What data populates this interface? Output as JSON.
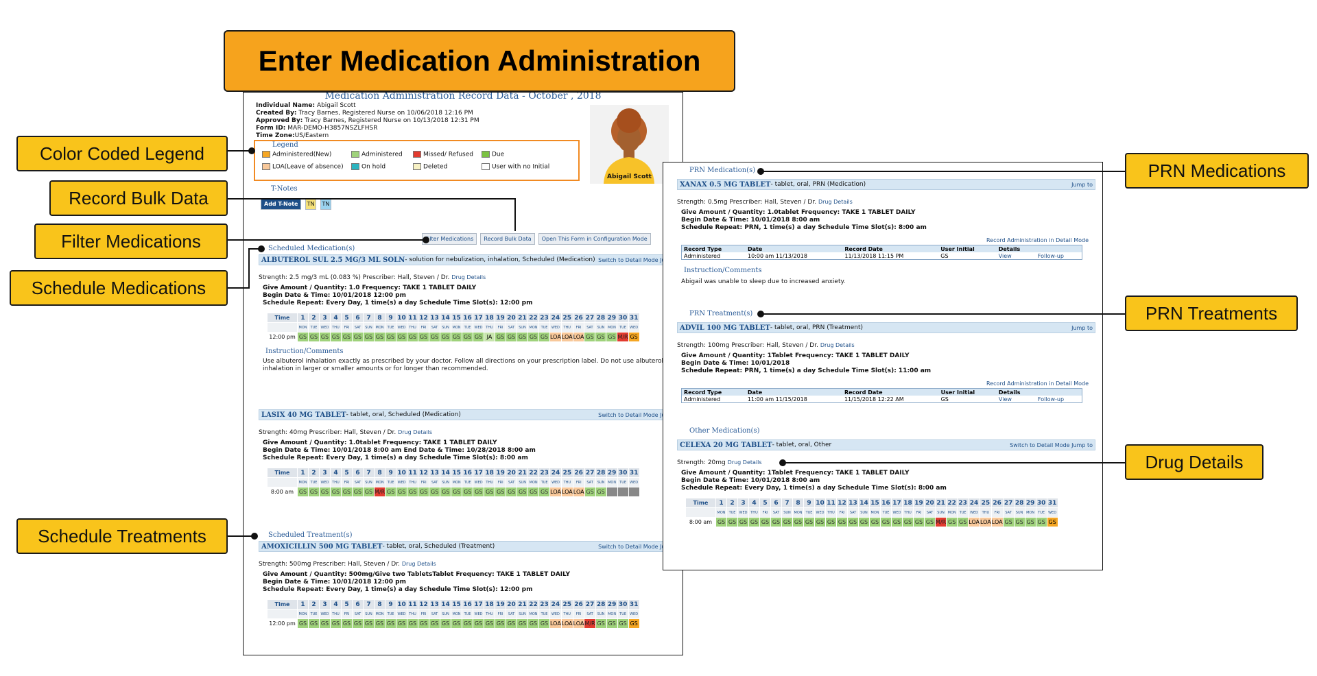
{
  "title": "Enter Medication Administration",
  "callouts": {
    "legend": "Color Coded Legend",
    "bulk": "Record Bulk Data",
    "filter": "Filter Medications",
    "schedule_meds": "Schedule Medications",
    "schedule_treat": "Schedule Treatments",
    "prn_meds": "PRN Medications",
    "prn_treat": "PRN Treatments",
    "drug_details": "Drug Details"
  },
  "record": {
    "header": "Medication Administration Record Data - October , 2018",
    "individual_label": "Individual Name:",
    "individual": "Abigail Scott",
    "created_label": "Created By:",
    "created": "Tracy Barnes, Registered Nurse on 10/06/2018 12:16 PM",
    "approved_label": "Approved By:",
    "approved": "Tracy Barnes, Registered Nurse on 10/13/2018 12:31 PM",
    "form_label": "Form ID:",
    "form_id": "MAR-DEMO-H3857NSZLFHSR",
    "tz_label": "Time Zone:",
    "tz": "US/Eastern",
    "avatar_name": "Abigail Scott"
  },
  "legend": {
    "title": "Legend",
    "items": [
      {
        "label": "Administered(New)",
        "color": "#f5a623"
      },
      {
        "label": "Administered",
        "color": "#9fd27b"
      },
      {
        "label": "Missed/ Refused",
        "color": "#e23b2f"
      },
      {
        "label": "Due",
        "color": "#7cc243"
      },
      {
        "label": "LOA(Leave of absence)",
        "color": "#f8c89a"
      },
      {
        "label": "On hold",
        "color": "#2bb4c0"
      },
      {
        "label": "Deleted",
        "color": "#f7f1c4"
      },
      {
        "label": "User with no Initial",
        "color": "#ffffff"
      }
    ]
  },
  "tnotes": {
    "title": "T-Notes",
    "add": "Add T-Note",
    "tn1": "TN",
    "tn2": "TN"
  },
  "toolbar": {
    "filter": "Filter Medications",
    "bulk": "Record Bulk Data",
    "config": "Open This Form in Configuration Mode"
  },
  "scheduled_meds_title": "Scheduled Medication(s)",
  "scheduled_treat_title": "Scheduled Treatment(s)",
  "days": [
    "1",
    "2",
    "3",
    "4",
    "5",
    "6",
    "7",
    "8",
    "9",
    "10",
    "11",
    "12",
    "13",
    "14",
    "15",
    "16",
    "17",
    "18",
    "19",
    "20",
    "21",
    "22",
    "23",
    "24",
    "25",
    "26",
    "27",
    "28",
    "29",
    "30",
    "31"
  ],
  "weekdays": [
    "MON",
    "TUE",
    "WED",
    "THU",
    "FRI",
    "SAT",
    "SUN",
    "MON",
    "TUE",
    "WED",
    "THU",
    "FRI",
    "SAT",
    "SUN",
    "MON",
    "TUE",
    "WED",
    "THU",
    "FRI",
    "SAT",
    "SUN",
    "MON",
    "TUE",
    "WED",
    "THU",
    "FRI",
    "SAT",
    "SUN",
    "MON",
    "TUE",
    "WED"
  ],
  "time_label": "Time",
  "meds": [
    {
      "name": "ALBUTEROL SUL 2.5 MG/3 ML SOLN",
      "desc": " - solution for nebulization, inhalation, Scheduled (Medication)",
      "links": "Switch to Detail Mode   Jump to",
      "strength": "Strength: 2.5 mg/3 mL (0.083 %)  Prescriber: Hall, Steven / Dr.",
      "drug_details": "Drug Details",
      "l1": "Give Amount / Quantity: 1.0 Frequency: TAKE 1 TABLET DAILY",
      "l2": "Begin Date & Time: 10/01/2018 12:00 pm",
      "l3": "Schedule Repeat: Every Day, 1 time(s) a day Schedule Time Slot(s): 12:00 pm",
      "time": "12:00 pm",
      "cells": [
        "GS",
        "GS",
        "GS",
        "GS",
        "GS",
        "GS",
        "GS",
        "GS",
        "GS",
        "GS",
        "GS",
        "GS",
        "GS",
        "GS",
        "GS",
        "GS",
        "GS",
        "JA",
        "GS",
        "GS",
        "GS",
        "GS",
        "GS",
        "LOA",
        "LOA",
        "LOA",
        "GS",
        "GS",
        "GS",
        "M/R",
        "GS"
      ],
      "instr_title": "Instruction/Comments",
      "instr": "Use albuterol inhalation exactly as prescribed by your doctor. Follow all directions on your prescription label. Do not use albuterol inhalation in larger or smaller amounts or for longer than recommended."
    },
    {
      "name": "LASIX 40 MG TABLET",
      "desc": " - tablet, oral, Scheduled (Medication)",
      "links": "Switch to Detail Mode   Jump to",
      "strength": "Strength: 40mg  Prescriber: Hall, Steven / Dr.",
      "drug_details": "Drug Details",
      "l1": "Give Amount / Quantity: 1.0tablet Frequency: TAKE 1 TABLET DAILY",
      "l2": "Begin Date & Time: 10/01/2018 8:00 am End Date & Time: 10/28/2018 8:00 am",
      "l3": "Schedule Repeat: Every Day, 1 time(s) a day Schedule Time Slot(s): 8:00 am",
      "time": "8:00 am",
      "cells": [
        "GS",
        "GS",
        "GS",
        "GS",
        "GS",
        "GS",
        "GS",
        "M/R",
        "GS",
        "GS",
        "GS",
        "GS",
        "GS",
        "GS",
        "GS",
        "GS",
        "GS",
        "GS",
        "GS",
        "GS",
        "GS",
        "GS",
        "GS",
        "LOA",
        "LOA",
        "LOA",
        "GS",
        "GS",
        "",
        "",
        ""
      ]
    }
  ],
  "treatments": [
    {
      "name": "AMOXICILLIN 500 MG TABLET",
      "desc": " - tablet, oral, Scheduled (Treatment)",
      "links": "Switch to Detail Mode   Jump to",
      "strength": "Strength: 500mg  Prescriber: Hall, Steven / Dr.",
      "drug_details": "Drug Details",
      "l1": "Give Amount / Quantity: 500mg/Give two TabletsTablet Frequency: TAKE 1 TABLET DAILY",
      "l2": "Begin Date & Time: 10/01/2018 12:00 pm",
      "l3": "Schedule Repeat: Every Day, 1 time(s) a day Schedule Time Slot(s): 12:00 pm",
      "time": "12:00 pm",
      "cells": [
        "GS",
        "GS",
        "GS",
        "GS",
        "GS",
        "GS",
        "GS",
        "GS",
        "GS",
        "GS",
        "GS",
        "GS",
        "GS",
        "GS",
        "GS",
        "GS",
        "GS",
        "GS",
        "GS",
        "GS",
        "GS",
        "GS",
        "GS",
        "LOA",
        "LOA",
        "LOA",
        "M/R",
        "GS",
        "GS",
        "GS",
        "GS"
      ]
    }
  ],
  "prn": {
    "meds_title": "PRN Medication(s)",
    "treat_title": "PRN Treatment(s)",
    "other_title": "Other Medication(s)",
    "items": [
      {
        "name": "XANAX 0.5 MG TABLET",
        "desc": " - tablet, oral, PRN (Medication)",
        "jump": "Jump to",
        "strength": "Strength: 0.5mg  Prescriber: Hall, Steven / Dr.",
        "drug_details": "Drug Details",
        "l1": "Give Amount / Quantity: 1.0tablet Frequency: TAKE 1 TABLET DAILY",
        "l2": "Begin Date & Time: 10/01/2018 8:00 am",
        "l3": "Schedule Repeat: PRN, 1 time(s) a day Schedule Time Slot(s): 8:00 am",
        "record_link": "Record Administration in Detail Mode",
        "headers": [
          "Record Type",
          "Date",
          "Record Date",
          "User Initial",
          "Details"
        ],
        "row": [
          "Administered",
          "10:00 am 11/13/2018",
          "11/13/2018 11:15 PM",
          "GS",
          "View",
          "Follow-up"
        ],
        "instr_title": "Instruction/Comments",
        "instr": "Abigail was unable to sleep due to increased anxiety."
      },
      {
        "name": "ADVIL 100 MG TABLET",
        "desc": " - tablet, oral, PRN (Treatment)",
        "jump": "Jump to",
        "strength": "Strength: 100mg  Prescriber: Hall, Steven / Dr.",
        "drug_details": "Drug Details",
        "l1": "Give Amount / Quantity: 1Tablet Frequency: TAKE 1 TABLET DAILY",
        "l2": "Begin Date & Time: 10/01/2018",
        "l3": "Schedule Repeat: PRN, 1 time(s) a day Schedule Time Slot(s): 11:00 am",
        "record_link": "Record Administration in Detail Mode",
        "headers": [
          "Record Type",
          "Date",
          "Record Date",
          "User Initial",
          "Details"
        ],
        "row": [
          "Administered",
          "11:00 am 11/15/2018",
          "11/15/2018 12:22 AM",
          "GS",
          "View",
          "Follow-up"
        ]
      }
    ],
    "other": {
      "name": "CELEXA 20 MG TABLET",
      "desc": " - tablet, oral, Other",
      "links": "Switch to Detail Mode   Jump to",
      "strength": "Strength: 20mg",
      "drug_details": "Drug Details",
      "l1": "Give Amount / Quantity: 1Tablet Frequency: TAKE 1 TABLET DAILY",
      "l2": "Begin Date & Time: 10/01/2018 8:00 am",
      "l3": "Schedule Repeat: Every Day, 1 time(s) a day Schedule Time Slot(s): 8:00 am",
      "time": "8:00 am",
      "cells": [
        "GS",
        "GS",
        "GS",
        "GS",
        "GS",
        "GS",
        "GS",
        "GS",
        "GS",
        "GS",
        "GS",
        "GS",
        "GS",
        "GS",
        "GS",
        "GS",
        "GS",
        "GS",
        "GS",
        "GS",
        "M/R",
        "GS",
        "GS",
        "LOA",
        "LOA",
        "LOA",
        "GS",
        "GS",
        "GS",
        "GS",
        "GS"
      ]
    }
  }
}
